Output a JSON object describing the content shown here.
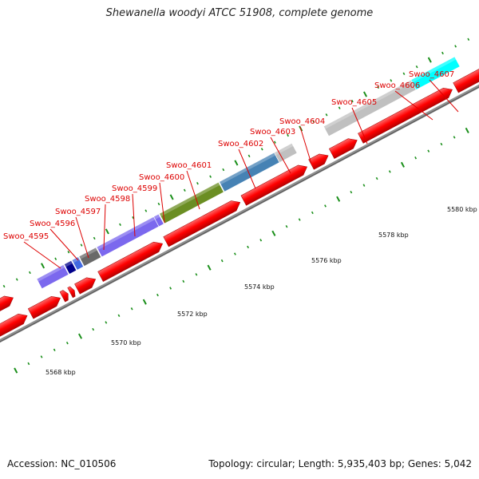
{
  "title": "Shewanella woodyi ATCC 51908, complete genome",
  "accession_text": "Accession: NC_010506",
  "summary_text": "Topology: circular; Length: 5,935,403 bp; Genes: 5,042",
  "colors": {
    "gene_arrow": "#ff0000",
    "backbone": "#909090",
    "tick": "#1a8f1a",
    "label": "#dd0000"
  },
  "scale_labels": [
    "5568 kbp",
    "5570 kbp",
    "5572 kbp",
    "5574 kbp",
    "5576 kbp",
    "5578 kbp",
    "5580 kbp"
  ],
  "genes": [
    {
      "label": "Swoo_4595",
      "color": "#7b68ee"
    },
    {
      "label": "Swoo_4596",
      "color": "#00008b"
    },
    {
      "label": "Swoo_4597",
      "color": "#4169e1"
    },
    {
      "label": "Swoo_4598",
      "color": "#696969"
    },
    {
      "label": "Swoo_4599",
      "color": "#7b68ee"
    },
    {
      "label": "Swoo_4600",
      "color": "#7b68ee"
    },
    {
      "label": "Swoo_4601",
      "color": "#6b8e23"
    },
    {
      "label": "Swoo_4602",
      "color": "#4682b4"
    },
    {
      "label": "Swoo_4603",
      "color": "#4682b4"
    },
    {
      "label": "Swoo_4604",
      "color": "#c0c0c0"
    },
    {
      "label": "Swoo_4605",
      "color": "#c0c0c0"
    },
    {
      "label": "Swoo_4606",
      "color": "#00ffff"
    },
    {
      "label": "Swoo_4607",
      "color": "#00ffff"
    }
  ]
}
